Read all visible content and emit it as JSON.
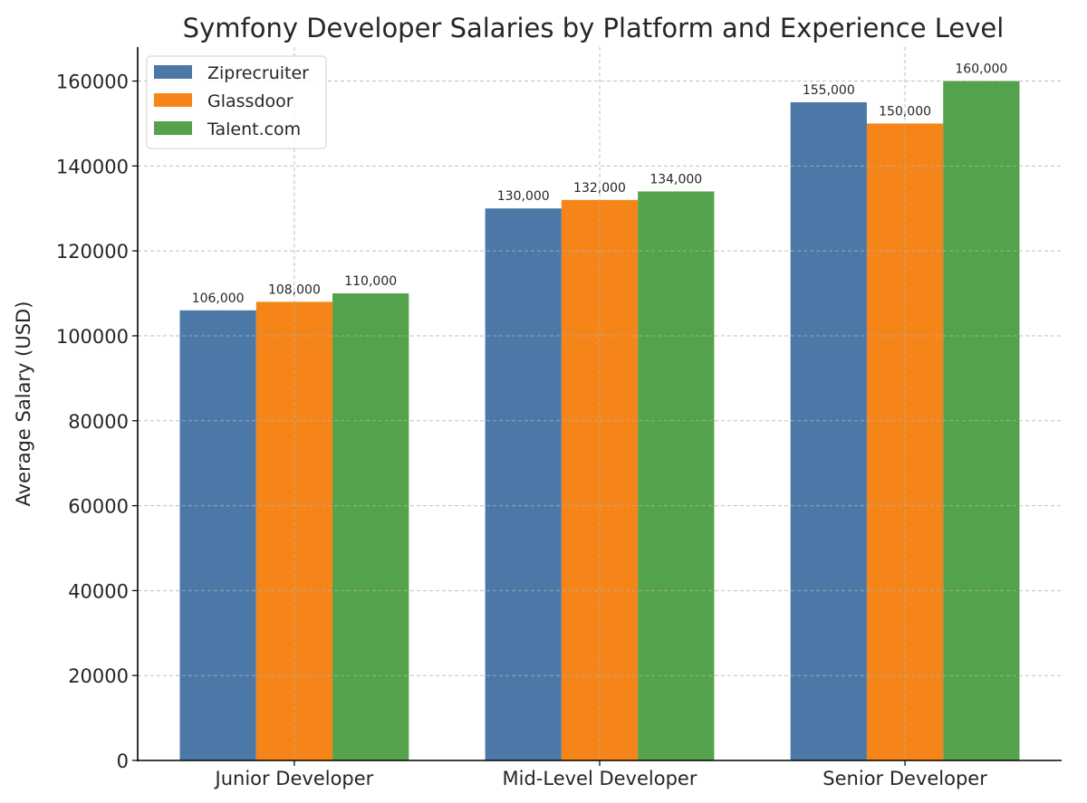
{
  "chart_data": {
    "type": "bar",
    "title": "Symfony Developer Salaries by Platform and Experience Level",
    "xlabel": "",
    "ylabel": "Average Salary (USD)",
    "categories": [
      "Junior Developer",
      "Mid-Level Developer",
      "Senior Developer"
    ],
    "series": [
      {
        "name": "Ziprecruiter",
        "color": "#4c78a8",
        "values": [
          106000,
          130000,
          155000
        ],
        "labels": [
          "106,000",
          "130,000",
          "155,000"
        ]
      },
      {
        "name": "Glassdoor",
        "color": "#f58518",
        "values": [
          108000,
          132000,
          150000
        ],
        "labels": [
          "108,000",
          "132,000",
          "150,000"
        ]
      },
      {
        "name": "Talent.com",
        "color": "#54a24b",
        "values": [
          110000,
          134000,
          160000
        ],
        "labels": [
          "110,000",
          "134,000",
          "160,000"
        ]
      }
    ],
    "ylim": [
      0,
      168000
    ],
    "yticks": [
      0,
      20000,
      40000,
      60000,
      80000,
      100000,
      120000,
      140000,
      160000
    ],
    "ytick_labels": [
      "0",
      "20000",
      "40000",
      "60000",
      "80000",
      "100000",
      "120000",
      "140000",
      "160000"
    ],
    "grid": true,
    "grid_style": "dashed",
    "legend_position": "top-left"
  }
}
